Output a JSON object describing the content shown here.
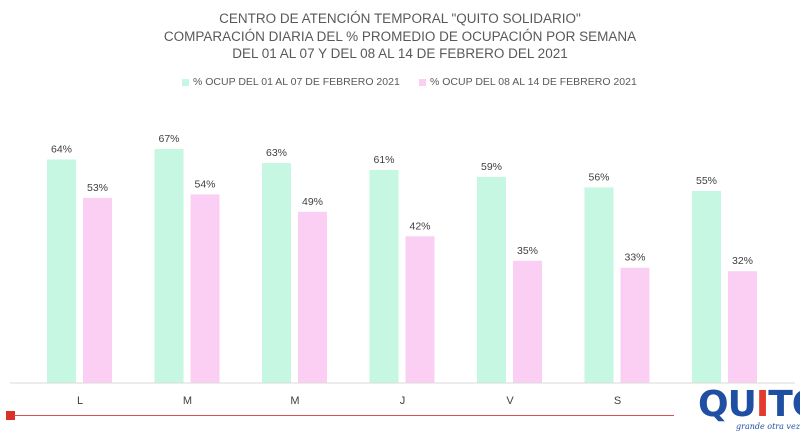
{
  "chart_data": {
    "type": "bar",
    "title": "CENTRO DE ATENCIÓN TEMPORAL \"QUITO SOLIDARIO\"",
    "subtitle_lines": [
      "COMPARACIÓN  DIARIA DEL %  PROMEDIO DE OCUPACIÓN POR SEMANA",
      "DEL 01 AL 07 Y DEL 08 AL 14 DE FEBRERO DEL 2021"
    ],
    "categories": [
      "L",
      "M",
      "M",
      "J",
      "V",
      "S",
      ""
    ],
    "series": [
      {
        "name": "% OCUP DEL 01 AL 07 DE FEBRERO 2021",
        "values": [
          64,
          67,
          63,
          61,
          59,
          56,
          55
        ],
        "color": "#c6f7e2"
      },
      {
        "name": "% OCUP DEL 08 AL 14 DE FEBRERO 2021",
        "values": [
          53,
          54,
          49,
          42,
          35,
          33,
          32
        ],
        "color": "#fbcff3"
      }
    ],
    "value_suffix": "%",
    "ylim": [
      0,
      67
    ],
    "grid": false,
    "legend_position": "top-center"
  },
  "colors": {
    "title": "#595959",
    "label": "#404040",
    "axis": "#d9d9d9",
    "footer_line": "#d9534f",
    "logo_blue": "#1f4fa3",
    "logo_red": "#e23a2e"
  },
  "logo": {
    "word_start": "QU",
    "word_i": "I",
    "word_end": "TO",
    "tagline": "grande otra vez"
  }
}
